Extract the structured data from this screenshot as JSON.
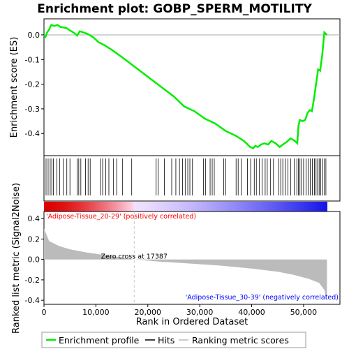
{
  "chart_data": {
    "type": "line",
    "title": "Enrichment plot: GOBP_SPERM_MOTILITY",
    "xlabel": "Rank in Ordered Dataset",
    "ylabel_top": "Enrichment score (ES)",
    "ylabel_bottom": "Ranked list metric (Signal2Noise)",
    "x_ticks": [
      0,
      10000,
      20000,
      30000,
      40000,
      50000
    ],
    "x_tick_labels": [
      "0",
      "10,000",
      "20,000",
      "30,000",
      "40,000",
      "50,000"
    ],
    "xlim": [
      0,
      57000
    ],
    "es_ylim": [
      -0.49,
      0.065
    ],
    "es_ticks": [
      0.0,
      -0.1,
      -0.2,
      -0.3,
      -0.4
    ],
    "es_tick_labels": [
      "0.0",
      "-0.1",
      "-0.2",
      "-0.3",
      "-0.4"
    ],
    "metric_ylim": [
      -0.44,
      0.47
    ],
    "metric_ticks": [
      0.4,
      0.2,
      0.0,
      -0.2,
      -0.4
    ],
    "metric_tick_labels": [
      "0.4",
      "0.2",
      "0.0",
      "-0.2",
      "-0.4"
    ],
    "n_genes": 54500,
    "zero_cross_rank": 17387,
    "zero_cross_label": "Zero cross at 17387",
    "pos_label": "'Adipose-Tissue_20-29' (positively correlated)",
    "neg_label": "'Adipose-Tissue_30-39' (negatively correlated)",
    "es_profile": [
      [
        0,
        0.0
      ],
      [
        300,
        -0.008
      ],
      [
        600,
        0.01
      ],
      [
        1000,
        0.022
      ],
      [
        1400,
        0.04
      ],
      [
        2000,
        0.036
      ],
      [
        2600,
        0.04
      ],
      [
        3200,
        0.032
      ],
      [
        3800,
        0.03
      ],
      [
        4400,
        0.027
      ],
      [
        5000,
        0.018
      ],
      [
        5800,
        0.008
      ],
      [
        6400,
        -0.003
      ],
      [
        6900,
        0.015
      ],
      [
        7600,
        0.01
      ],
      [
        8500,
        0.003
      ],
      [
        9500,
        -0.01
      ],
      [
        10500,
        -0.03
      ],
      [
        11500,
        -0.04
      ],
      [
        13000,
        -0.06
      ],
      [
        15000,
        -0.09
      ],
      [
        17500,
        -0.13
      ],
      [
        20000,
        -0.17
      ],
      [
        22500,
        -0.21
      ],
      [
        25000,
        -0.25
      ],
      [
        27000,
        -0.29
      ],
      [
        29000,
        -0.31
      ],
      [
        31000,
        -0.34
      ],
      [
        33000,
        -0.36
      ],
      [
        35000,
        -0.39
      ],
      [
        37000,
        -0.41
      ],
      [
        38500,
        -0.43
      ],
      [
        39700,
        -0.455
      ],
      [
        40300,
        -0.46
      ],
      [
        40700,
        -0.45
      ],
      [
        41200,
        -0.455
      ],
      [
        41800,
        -0.445
      ],
      [
        42400,
        -0.44
      ],
      [
        43200,
        -0.445
      ],
      [
        43800,
        -0.43
      ],
      [
        44600,
        -0.44
      ],
      [
        45400,
        -0.455
      ],
      [
        46000,
        -0.445
      ],
      [
        46700,
        -0.435
      ],
      [
        47500,
        -0.42
      ],
      [
        48300,
        -0.43
      ],
      [
        48800,
        -0.44
      ],
      [
        49000,
        -0.37
      ],
      [
        49300,
        -0.345
      ],
      [
        49800,
        -0.35
      ],
      [
        50300,
        -0.345
      ],
      [
        50800,
        -0.315
      ],
      [
        51200,
        -0.305
      ],
      [
        51600,
        -0.31
      ],
      [
        52000,
        -0.26
      ],
      [
        52400,
        -0.2
      ],
      [
        52800,
        -0.14
      ],
      [
        53200,
        -0.145
      ],
      [
        53600,
        -0.08
      ],
      [
        54000,
        0.01
      ],
      [
        54500,
        0.0
      ]
    ],
    "hits": [
      400,
      800,
      1200,
      1500,
      1800,
      2500,
      3000,
      3700,
      4400,
      5000,
      6400,
      6700,
      7100,
      8000,
      8500,
      8900,
      10900,
      11300,
      11900,
      12500,
      13400,
      14000,
      15100,
      16900,
      21600,
      22000,
      23200,
      24600,
      25400,
      26100,
      26700,
      27200,
      27700,
      28100,
      28600,
      30700,
      31100,
      32000,
      32400,
      32800,
      34600,
      35000,
      37000,
      37400,
      38000,
      39200,
      39800,
      40500,
      40900,
      41500,
      42000,
      42600,
      43000,
      43600,
      44200,
      45200,
      45600,
      46000,
      46500,
      47000,
      47500,
      48200,
      48700,
      49000,
      49300,
      49600,
      50000,
      50500,
      50900,
      51300,
      51700,
      52100,
      52400,
      52700,
      53000,
      53300,
      53700,
      54000,
      54300
    ],
    "metric_curve": [
      [
        0,
        0.3
      ],
      [
        1000,
        0.18
      ],
      [
        3000,
        0.13
      ],
      [
        5000,
        0.1
      ],
      [
        8000,
        0.07
      ],
      [
        12000,
        0.04
      ],
      [
        15000,
        0.02
      ],
      [
        17387,
        0.0
      ],
      [
        22000,
        -0.02
      ],
      [
        28000,
        -0.04
      ],
      [
        34000,
        -0.06
      ],
      [
        40000,
        -0.09
      ],
      [
        45000,
        -0.12
      ],
      [
        48000,
        -0.15
      ],
      [
        51000,
        -0.19
      ],
      [
        53000,
        -0.23
      ],
      [
        54000,
        -0.3
      ],
      [
        54500,
        -0.4
      ]
    ],
    "legend": [
      "Enrichment profile",
      "Hits",
      "Ranking metric scores"
    ],
    "colors": {
      "es_line": "#00ee00",
      "hits": "#000000",
      "metric_fill": "#bbbbbb",
      "pos_color": "#ff0000",
      "neg_color": "#0000ff",
      "zero_line": "#cccccc"
    }
  }
}
